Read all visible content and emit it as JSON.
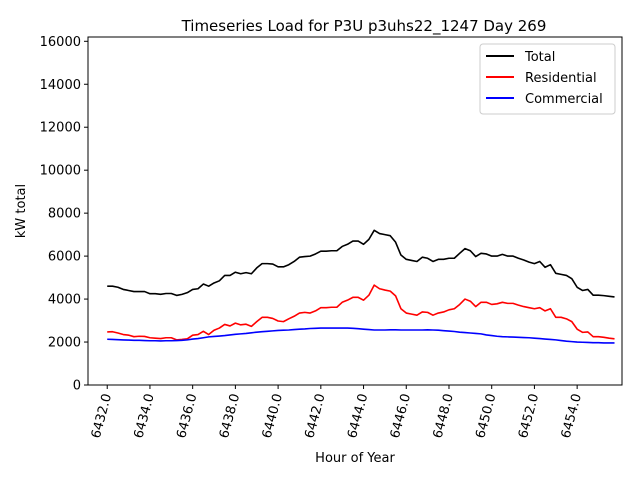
{
  "chart_data": {
    "type": "line",
    "title": "Timeseries Load for P3U p3uhs22_1247  Day 269",
    "xlabel": "Hour of Year",
    "ylabel": "kW total",
    "xlim": [
      6431.1,
      6456.1
    ],
    "ylim": [
      0,
      16200
    ],
    "xticks": [
      6432.0,
      6434.0,
      6436.0,
      6438.0,
      6440.0,
      6442.0,
      6444.0,
      6446.0,
      6448.0,
      6450.0,
      6452.0,
      6454.0
    ],
    "xtick_labels": [
      "6432.0",
      "6434.0",
      "6436.0",
      "6438.0",
      "6440.0",
      "6442.0",
      "6444.0",
      "6446.0",
      "6448.0",
      "6450.0",
      "6452.0",
      "6454.0"
    ],
    "yticks": [
      0,
      2000,
      4000,
      6000,
      8000,
      10000,
      12000,
      14000,
      16000
    ],
    "ytick_labels": [
      "0",
      "2000",
      "4000",
      "6000",
      "8000",
      "10000",
      "12000",
      "14000",
      "16000"
    ],
    "legend_position": "top-right",
    "x_start": 6432.0,
    "x_step": 0.25,
    "series": [
      {
        "name": "Total",
        "color": "#000000",
        "values": [
          4600,
          4600,
          4550,
          4450,
          4400,
          4350,
          4350,
          4350,
          4250,
          4250,
          4220,
          4260,
          4260,
          4170,
          4220,
          4300,
          4450,
          4480,
          4700,
          4600,
          4750,
          4850,
          5100,
          5100,
          5250,
          5180,
          5230,
          5180,
          5450,
          5650,
          5650,
          5630,
          5500,
          5500,
          5600,
          5750,
          5950,
          5980,
          6000,
          6100,
          6230,
          6230,
          6250,
          6250,
          6450,
          6550,
          6700,
          6700,
          6550,
          6780,
          7200,
          7050,
          7000,
          6950,
          6650,
          6050,
          5850,
          5800,
          5750,
          5950,
          5900,
          5750,
          5850,
          5850,
          5900,
          5900,
          6130,
          6350,
          6250,
          5980,
          6130,
          6100,
          6000,
          6000,
          6080,
          6000,
          6000,
          5900,
          5820,
          5720,
          5650,
          5750,
          5480,
          5600,
          5200,
          5150,
          5100,
          4950,
          4550,
          4400,
          4450,
          4180,
          4180,
          4160,
          4130,
          4100
        ]
      },
      {
        "name": "Residential",
        "color": "#ff0000",
        "values": [
          2470,
          2480,
          2420,
          2350,
          2320,
          2250,
          2270,
          2260,
          2200,
          2180,
          2160,
          2200,
          2200,
          2100,
          2120,
          2150,
          2320,
          2350,
          2500,
          2350,
          2550,
          2650,
          2820,
          2750,
          2880,
          2800,
          2830,
          2730,
          2950,
          3150,
          3150,
          3100,
          2980,
          2950,
          3080,
          3200,
          3350,
          3380,
          3350,
          3450,
          3600,
          3600,
          3620,
          3620,
          3850,
          3950,
          4080,
          4080,
          3950,
          4180,
          4650,
          4480,
          4420,
          4370,
          4150,
          3550,
          3350,
          3300,
          3250,
          3400,
          3380,
          3250,
          3350,
          3400,
          3500,
          3550,
          3750,
          4000,
          3900,
          3650,
          3850,
          3850,
          3750,
          3780,
          3850,
          3800,
          3800,
          3720,
          3650,
          3600,
          3550,
          3600,
          3450,
          3550,
          3150,
          3150,
          3080,
          2950,
          2600,
          2450,
          2470,
          2250,
          2250,
          2220,
          2180,
          2150
        ]
      },
      {
        "name": "Commercial",
        "color": "#0000ff",
        "values": [
          2130,
          2120,
          2110,
          2100,
          2090,
          2080,
          2080,
          2070,
          2060,
          2060,
          2050,
          2060,
          2060,
          2070,
          2080,
          2100,
          2140,
          2160,
          2200,
          2240,
          2260,
          2280,
          2300,
          2330,
          2360,
          2380,
          2400,
          2430,
          2460,
          2480,
          2500,
          2520,
          2540,
          2550,
          2560,
          2580,
          2600,
          2610,
          2630,
          2640,
          2650,
          2650,
          2650,
          2650,
          2650,
          2650,
          2640,
          2620,
          2600,
          2580,
          2560,
          2560,
          2560,
          2570,
          2570,
          2560,
          2560,
          2560,
          2560,
          2560,
          2570,
          2560,
          2550,
          2530,
          2510,
          2490,
          2460,
          2440,
          2420,
          2400,
          2380,
          2330,
          2300,
          2270,
          2250,
          2240,
          2230,
          2220,
          2210,
          2200,
          2180,
          2160,
          2140,
          2120,
          2100,
          2070,
          2040,
          2020,
          2000,
          1990,
          1980,
          1970,
          1970,
          1960,
          1960,
          1960
        ]
      }
    ]
  }
}
